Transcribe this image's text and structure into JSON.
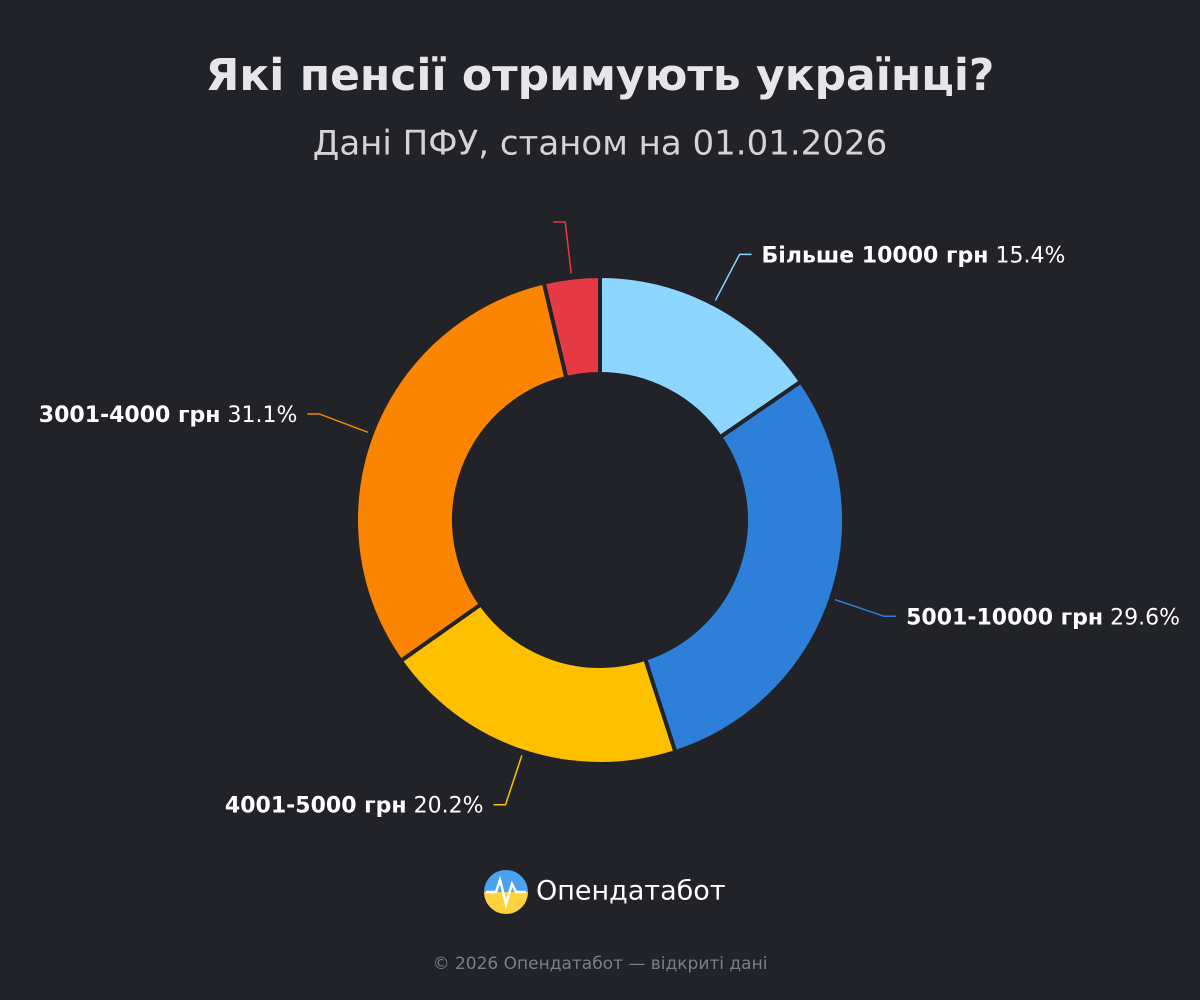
{
  "chart_data": {
    "type": "pie",
    "title": "Які пенсії отримують українці?",
    "subtitle": "Дані ПФУ, станом на 01.01.2026",
    "categories": [
      "Більше 10000 грн",
      "5001-10000 грн",
      "4001-5000 грн",
      "3001-4000 грн",
      null
    ],
    "values": [
      15.4,
      29.6,
      20.2,
      31.1,
      3.7
    ],
    "value_labels": [
      "15.4%",
      "29.6%",
      "20.2%",
      "31.1%",
      null
    ],
    "colors": [
      "#8dd6ff",
      "#2d7fd9",
      "#ffc000",
      "#fb8500",
      "#e63946"
    ],
    "donut": true
  },
  "brand": "Опендатабот",
  "footer": "© 2026 Опендатабот — відкриті дані"
}
